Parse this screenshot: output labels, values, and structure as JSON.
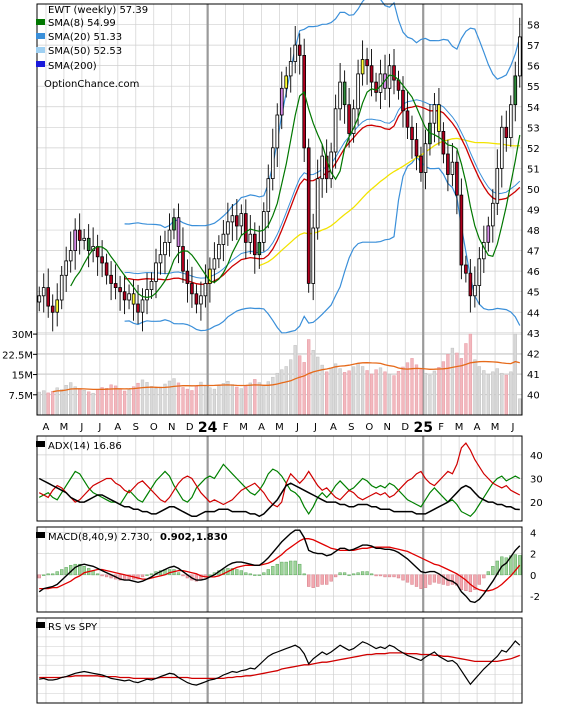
{
  "chart_data": [
    {
      "type": "candlestick",
      "title": "EWT (weekly) 57.39",
      "legend": [
        {
          "label": "SMA(8) 54.99",
          "color": "#007700"
        },
        {
          "label": "SMA(20) 51.33",
          "color": "#3a8fd9"
        },
        {
          "label": "SMA(50) 52.53",
          "color": "#9fd0f2"
        },
        {
          "label": "SMA(200)",
          "color": "#1a1adb"
        }
      ],
      "watermark": "OptionChance.com",
      "ylim": [
        39,
        59
      ],
      "yticks": [
        40,
        41,
        42,
        43,
        44,
        45,
        46,
        47,
        48,
        49,
        50,
        51,
        52,
        53,
        54,
        55,
        56,
        57,
        58
      ],
      "x_labels": [
        "A",
        "M",
        "J",
        "J",
        "A",
        "S",
        "O",
        "N",
        "D",
        "24",
        "F",
        "M",
        "A",
        "M",
        "J",
        "J",
        "A",
        "S",
        "O",
        "N",
        "D",
        "25",
        "F",
        "M",
        "A",
        "M",
        "J"
      ],
      "close": [
        44.8,
        45.2,
        44.3,
        44.0,
        44.6,
        45.8,
        46.5,
        47.0,
        48.0,
        47.5,
        47.6,
        47.0,
        47.2,
        46.7,
        46.4,
        45.8,
        45.4,
        45.2,
        45.0,
        44.6,
        44.9,
        44.4,
        44.0,
        44.6,
        45.1,
        45.5,
        46.4,
        46.8,
        47.4,
        48.0,
        48.6,
        47.2,
        46.0,
        45.4,
        44.9,
        44.4,
        44.8,
        45.4,
        46.1,
        46.6,
        47.3,
        47.8,
        48.4,
        48.7,
        48.2,
        48.8,
        47.4,
        47.8,
        46.8,
        47.4,
        48.9,
        50.5,
        52.0,
        53.6,
        54.9,
        55.5,
        56.2,
        57.0,
        56.5,
        52.0,
        45.4,
        48.1,
        50.5,
        51.6,
        50.5,
        51.8,
        53.9,
        55.2,
        54.1,
        52.7,
        53.9,
        55.6,
        56.3,
        56.0,
        55.2,
        54.7,
        55.6,
        54.9,
        56.0,
        55.3,
        54.8,
        53.8,
        53.0,
        52.4,
        51.6,
        50.8,
        52.2,
        53.2,
        54.1,
        52.8,
        51.7,
        50.7,
        51.3,
        49.7,
        46.3,
        45.9,
        44.8,
        45.3,
        46.6,
        47.4,
        48.2,
        49.3,
        51.0,
        53.0,
        52.5,
        54.1,
        55.5,
        57.4
      ],
      "volume_ylim": [
        0,
        33
      ],
      "volume_yticks": [
        {
          "value": 7.5,
          "label": "7.5M"
        },
        {
          "value": 15,
          "label": "15M"
        },
        {
          "value": 22.5,
          "label": "22.5M"
        },
        {
          "value": 30,
          "label": "30M"
        }
      ],
      "volume": [
        8.5,
        9.0,
        8.2,
        8.8,
        10.1,
        9.4,
        11.0,
        12.0,
        10.5,
        9.8,
        9.2,
        8.6,
        8.1,
        9.5,
        10.2,
        9.9,
        11.2,
        10.8,
        9.7,
        8.9,
        9.3,
        10.5,
        11.8,
        13.0,
        12.1,
        10.6,
        9.9,
        10.4,
        11.5,
        12.6,
        13.5,
        11.9,
        10.2,
        9.6,
        9.1,
        10.8,
        12.2,
        11.0,
        10.1,
        9.6,
        10.9,
        11.7,
        12.5,
        11.3,
        10.4,
        9.8,
        10.7,
        11.9,
        13.2,
        12.0,
        11.1,
        12.4,
        14.0,
        15.5,
        16.8,
        18.0,
        20.5,
        25.8,
        22.0,
        19.5,
        28.0,
        24.0,
        21.5,
        18.5,
        16.0,
        17.5,
        19.0,
        17.2,
        15.8,
        16.4,
        17.9,
        19.2,
        18.0,
        16.5,
        15.2,
        16.8,
        17.5,
        16.0,
        15.0,
        14.6,
        16.2,
        17.8,
        19.4,
        21.0,
        18.6,
        16.9,
        15.5,
        14.8,
        16.3,
        17.7,
        19.8,
        22.5,
        24.8,
        23.0,
        21.0,
        26.5,
        30.0,
        20.5,
        18.0,
        16.5,
        15.0,
        16.0,
        17.2,
        15.5,
        14.8,
        16.0,
        30.0,
        6.0
      ]
    },
    {
      "type": "line",
      "title": "ADX(14) 16.86",
      "series_colors": [
        "#000000",
        "#008000",
        "#d00000"
      ],
      "ylim": [
        12,
        48
      ],
      "yticks": [
        20,
        30,
        40
      ],
      "adx": [
        30,
        29,
        28,
        27,
        26,
        25,
        24,
        22,
        21,
        20,
        20,
        21,
        22,
        23,
        23,
        22,
        21,
        20,
        19,
        18,
        18,
        17,
        17,
        16,
        16,
        15,
        15,
        16,
        17,
        18,
        18,
        17,
        16,
        15,
        14,
        14,
        15,
        16,
        16,
        16,
        17,
        17,
        17,
        16,
        16,
        16,
        16,
        15,
        15,
        14,
        15,
        17,
        19,
        21,
        24,
        27,
        28,
        27,
        26,
        25,
        24,
        23,
        22,
        21,
        20,
        20,
        20,
        19,
        19,
        18,
        18,
        19,
        19,
        19,
        18,
        18,
        17,
        17,
        17,
        16,
        16,
        16,
        16,
        16,
        15,
        15,
        15,
        16,
        17,
        18,
        19,
        20,
        22,
        24,
        26,
        27,
        26,
        24,
        22,
        21,
        20,
        20,
        19,
        19,
        18,
        18,
        17,
        16.86
      ],
      "plus_di": [
        22,
        23,
        24,
        22,
        21,
        24,
        27,
        30,
        33,
        32,
        29,
        26,
        24,
        23,
        22,
        21,
        20,
        20,
        19,
        22,
        25,
        23,
        21,
        20,
        23,
        26,
        29,
        31,
        33,
        31,
        27,
        24,
        21,
        20,
        22,
        26,
        28,
        30,
        31,
        30,
        33,
        36,
        34,
        32,
        30,
        28,
        26,
        24,
        23,
        25,
        28,
        32,
        34,
        33,
        31,
        28,
        25,
        24,
        22,
        18,
        15,
        18,
        22,
        24,
        22,
        24,
        27,
        29,
        27,
        25,
        26,
        28,
        30,
        29,
        27,
        26,
        27,
        26,
        28,
        27,
        25,
        23,
        21,
        20,
        19,
        18,
        21,
        24,
        26,
        24,
        22,
        20,
        21,
        19,
        16,
        15,
        14,
        16,
        19,
        22,
        25,
        28,
        30,
        31,
        29,
        30,
        31,
        30
      ],
      "minus_di": [
        24,
        23,
        22,
        25,
        27,
        26,
        24,
        22,
        20,
        21,
        23,
        25,
        27,
        28,
        29,
        30,
        30,
        28,
        27,
        25,
        24,
        26,
        28,
        29,
        27,
        25,
        23,
        21,
        20,
        22,
        25,
        28,
        30,
        31,
        30,
        27,
        24,
        22,
        20,
        21,
        20,
        19,
        20,
        21,
        23,
        25,
        26,
        27,
        28,
        26,
        24,
        21,
        19,
        18,
        20,
        28,
        32,
        30,
        28,
        30,
        33,
        30,
        27,
        25,
        26,
        24,
        22,
        21,
        23,
        25,
        24,
        22,
        21,
        22,
        23,
        24,
        23,
        24,
        22,
        23,
        25,
        27,
        29,
        30,
        32,
        33,
        30,
        28,
        27,
        29,
        31,
        33,
        32,
        36,
        43,
        45,
        42,
        38,
        35,
        32,
        30,
        28,
        27,
        26,
        27,
        25,
        24,
        23
      ]
    },
    {
      "type": "line",
      "title": "MACD(8,40,9) 2.730,",
      "signal_label": "0.902,",
      "hist_label": "1.830",
      "series_colors": [
        "#000000",
        "#e00000",
        "#2a4fb0"
      ],
      "ylim": [
        -3.5,
        4.5
      ],
      "yticks": [
        -2,
        0,
        2,
        4
      ],
      "macd": [
        -1.6,
        -1.3,
        -1.2,
        -1.1,
        -0.9,
        -0.5,
        -0.1,
        0.3,
        0.7,
        0.9,
        1.0,
        0.9,
        0.8,
        0.6,
        0.4,
        0.2,
        0.0,
        -0.2,
        -0.4,
        -0.5,
        -0.5,
        -0.6,
        -0.7,
        -0.6,
        -0.4,
        -0.2,
        0.1,
        0.3,
        0.5,
        0.7,
        0.8,
        0.6,
        0.3,
        0.0,
        -0.3,
        -0.5,
        -0.5,
        -0.4,
        -0.2,
        0.0,
        0.3,
        0.6,
        0.9,
        1.1,
        1.2,
        1.2,
        1.1,
        1.0,
        0.9,
        0.9,
        1.2,
        1.6,
        2.1,
        2.6,
        3.1,
        3.5,
        3.9,
        4.2,
        4.2,
        3.5,
        2.3,
        2.1,
        2.0,
        2.0,
        1.8,
        1.9,
        2.2,
        2.5,
        2.5,
        2.3,
        2.4,
        2.6,
        2.8,
        2.8,
        2.7,
        2.5,
        2.5,
        2.4,
        2.4,
        2.3,
        2.1,
        1.8,
        1.5,
        1.1,
        0.7,
        0.3,
        0.2,
        0.3,
        0.3,
        0.1,
        -0.2,
        -0.5,
        -0.6,
        -0.9,
        -1.6,
        -2.0,
        -2.5,
        -2.6,
        -2.3,
        -1.8,
        -1.2,
        -0.6,
        0.1,
        0.8,
        1.1,
        1.7,
        2.3,
        2.73
      ],
      "signal": [
        -1.3,
        -1.3,
        -1.3,
        -1.2,
        -1.2,
        -1.0,
        -0.8,
        -0.6,
        -0.3,
        -0.1,
        0.2,
        0.3,
        0.4,
        0.5,
        0.5,
        0.4,
        0.3,
        0.2,
        0.1,
        0.0,
        -0.1,
        -0.2,
        -0.3,
        -0.4,
        -0.4,
        -0.3,
        -0.2,
        -0.1,
        0.0,
        0.2,
        0.3,
        0.4,
        0.4,
        0.3,
        0.2,
        0.1,
        -0.1,
        -0.2,
        -0.2,
        -0.2,
        -0.1,
        0.1,
        0.3,
        0.5,
        0.7,
        0.8,
        0.9,
        0.9,
        0.9,
        0.9,
        1.0,
        1.1,
        1.3,
        1.6,
        1.9,
        2.3,
        2.6,
        2.9,
        3.2,
        3.4,
        3.4,
        3.3,
        3.1,
        2.9,
        2.7,
        2.5,
        2.4,
        2.3,
        2.3,
        2.3,
        2.3,
        2.4,
        2.5,
        2.5,
        2.6,
        2.6,
        2.6,
        2.6,
        2.6,
        2.5,
        2.4,
        2.3,
        2.2,
        2.0,
        1.8,
        1.6,
        1.4,
        1.2,
        1.0,
        0.9,
        0.7,
        0.5,
        0.3,
        0.1,
        -0.2,
        -0.5,
        -0.9,
        -1.2,
        -1.4,
        -1.5,
        -1.5,
        -1.4,
        -1.2,
        -0.9,
        -0.5,
        -0.1,
        0.4,
        0.902
      ]
    },
    {
      "type": "line",
      "title": "RS vs SPY",
      "series_colors": [
        "#000000",
        "#d00000"
      ],
      "ylim": [
        0,
        100
      ],
      "rs": [
        28,
        29,
        27,
        27,
        28,
        30,
        31,
        33,
        35,
        36,
        37,
        36,
        35,
        34,
        33,
        31,
        29,
        28,
        27,
        26,
        27,
        25,
        24,
        26,
        28,
        27,
        29,
        31,
        33,
        35,
        34,
        30,
        27,
        24,
        22,
        21,
        23,
        25,
        27,
        28,
        30,
        33,
        35,
        37,
        36,
        38,
        39,
        41,
        40,
        45,
        50,
        55,
        58,
        60,
        62,
        64,
        66,
        68,
        65,
        58,
        46,
        52,
        56,
        60,
        57,
        60,
        64,
        68,
        65,
        62,
        64,
        68,
        72,
        70,
        67,
        64,
        66,
        64,
        68,
        66,
        62,
        59,
        56,
        54,
        52,
        50,
        54,
        57,
        60,
        55,
        52,
        49,
        50,
        46,
        38,
        30,
        22,
        28,
        34,
        40,
        45,
        50,
        55,
        62,
        60,
        66,
        73,
        68
      ],
      "rs_ma": [
        30,
        30,
        30,
        30,
        30,
        30,
        31,
        31,
        32,
        32,
        32,
        32,
        32,
        32,
        31,
        31,
        31,
        31,
        30,
        30,
        30,
        29,
        29,
        29,
        29,
        29,
        29,
        30,
        30,
        30,
        30,
        30,
        30,
        30,
        29,
        29,
        29,
        29,
        29,
        29,
        29,
        29,
        30,
        30,
        31,
        31,
        32,
        32,
        33,
        34,
        35,
        36,
        37,
        38,
        40,
        41,
        42,
        43,
        44,
        45,
        45,
        46,
        47,
        48,
        48,
        49,
        50,
        51,
        52,
        53,
        54,
        55,
        56,
        57,
        57,
        58,
        58,
        58,
        59,
        59,
        59,
        59,
        58,
        58,
        58,
        57,
        57,
        57,
        56,
        56,
        55,
        55,
        54,
        53,
        52,
        51,
        50,
        49,
        49,
        49,
        49,
        49,
        49,
        50,
        51,
        52,
        54,
        56
      ]
    }
  ]
}
